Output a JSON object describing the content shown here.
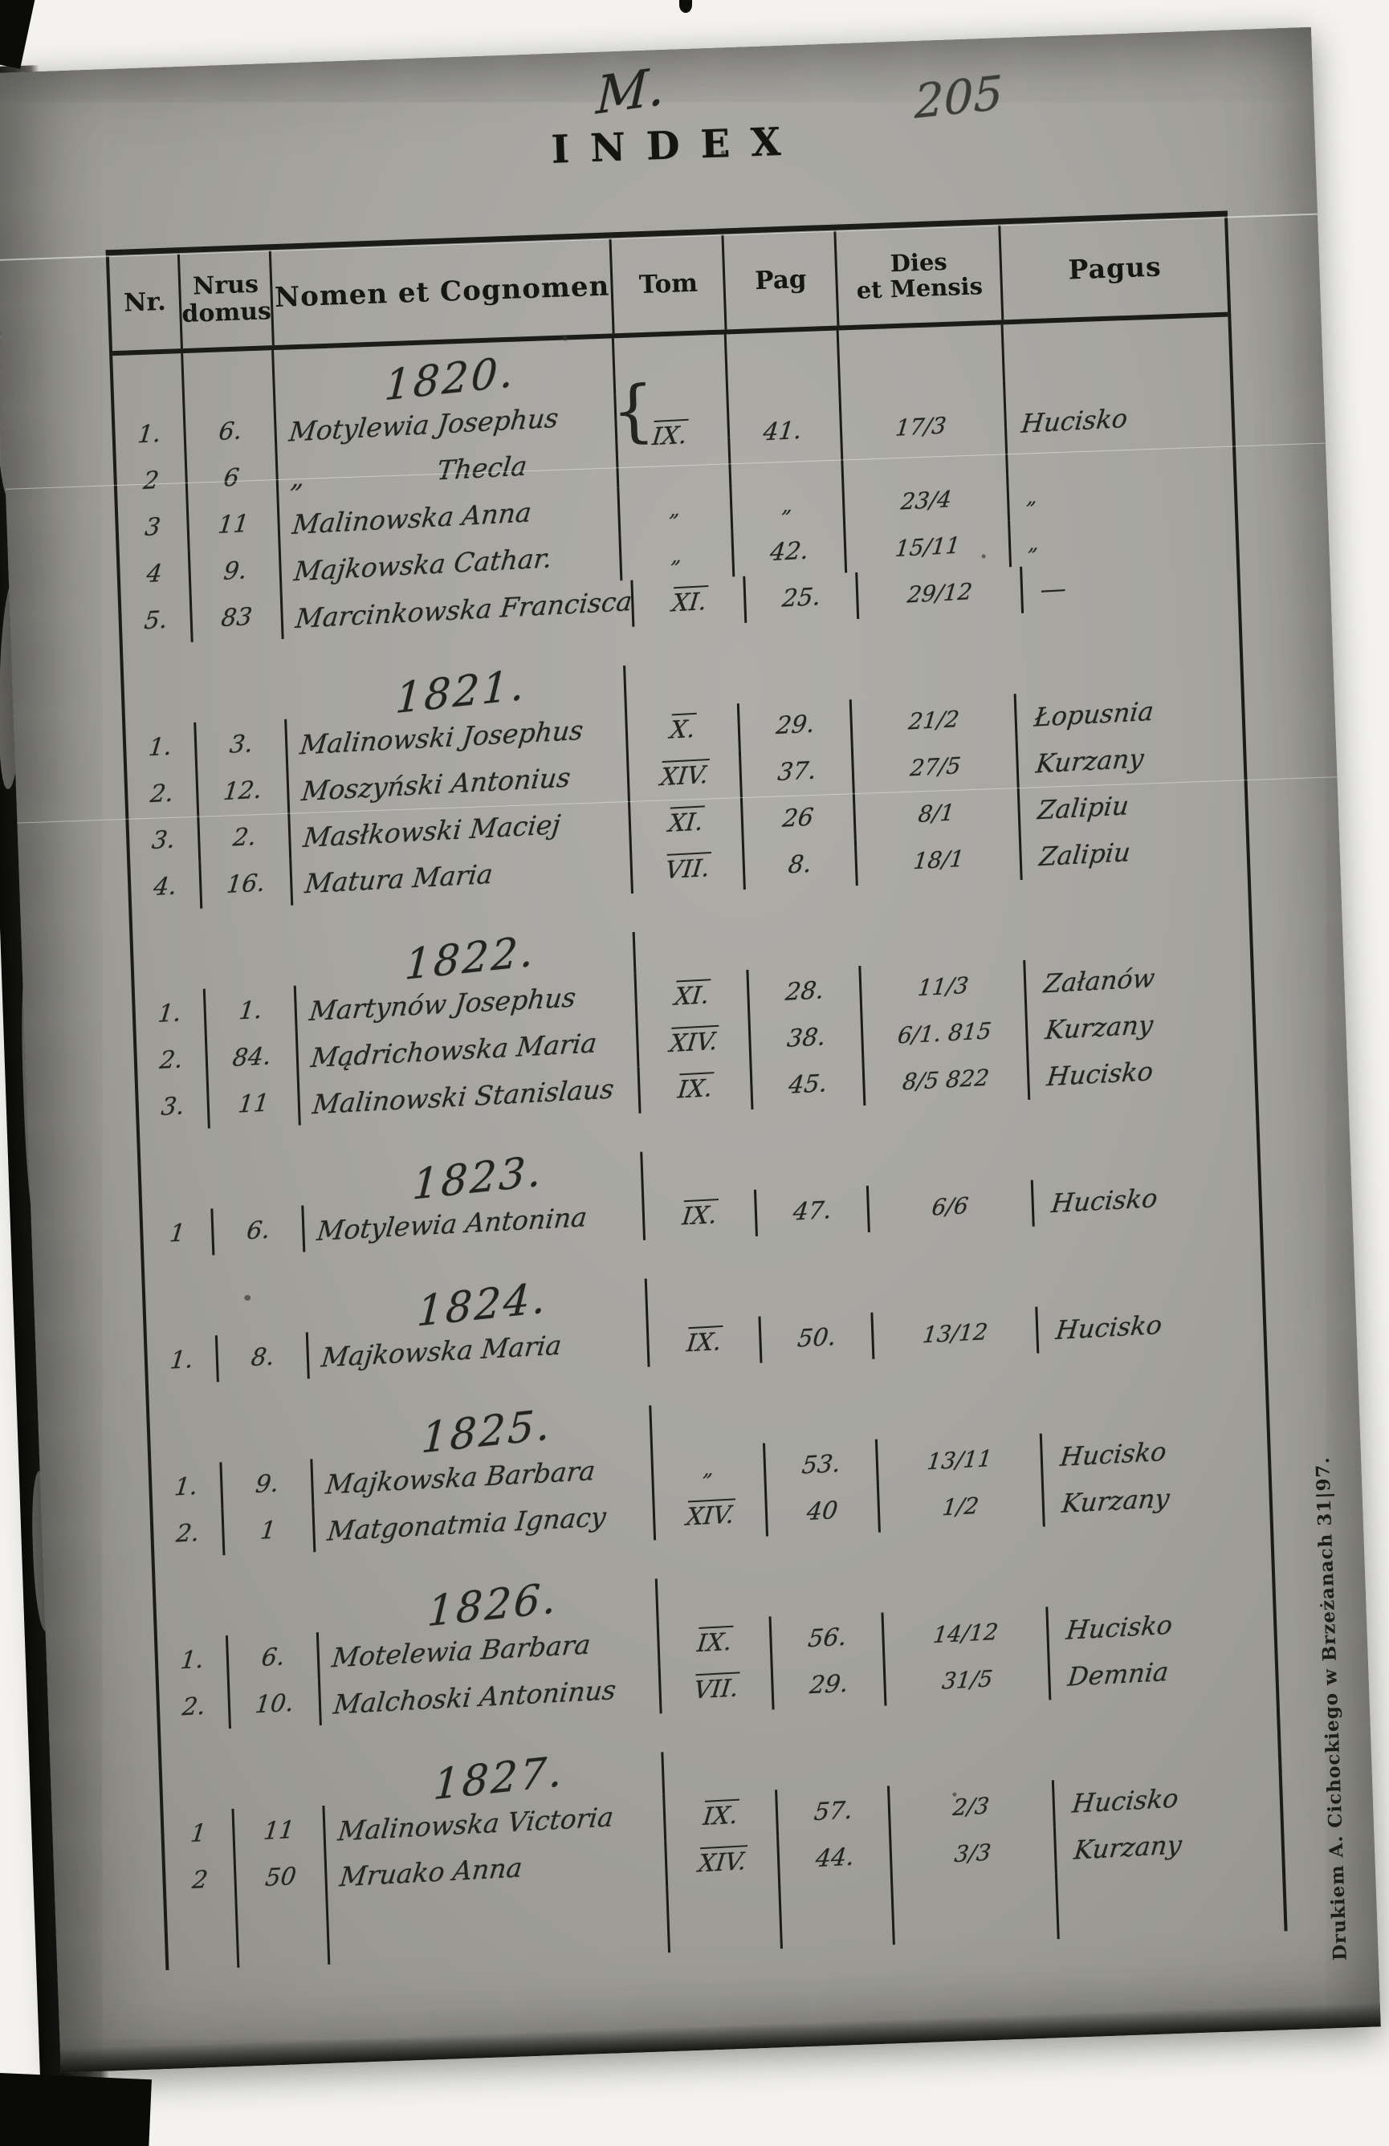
{
  "document": {
    "handwritten_letter": "M.",
    "title": "INDEX",
    "page_number": "205",
    "imprint": "Drukiem A. Cichockiego w Brzeżanach 31|97."
  },
  "table": {
    "headers": {
      "nr": "Nr.",
      "domus_line1": "Nrus",
      "domus_line2": "domus",
      "name": "Nomen et Cognomen",
      "tom": "Tom",
      "pag": "Pag",
      "dies_line1": "Dies",
      "dies_line2": "et Mensis",
      "pagus": "Pagus"
    },
    "sections": [
      {
        "year": "1820.",
        "rows": [
          {
            "nr": "1.",
            "domus": "6.",
            "name": "Motylewia Josephus",
            "brace": "{",
            "straddle": true,
            "tom": "IX.",
            "pag": "41.",
            "dies": "17/3",
            "pagus": "Hucisko"
          },
          {
            "nr": "2",
            "domus": "6",
            "name": "„     Thecla",
            "tom": "",
            "pag": "",
            "dies": "",
            "pagus": ""
          },
          {
            "nr": "3",
            "domus": "11",
            "name": "Malinowska Anna",
            "tom": "„",
            "pag": "„",
            "dies": "23/4",
            "pagus": "„"
          },
          {
            "nr": "4",
            "domus": "9.",
            "name": "Majkowska Cathar.",
            "tom": "„",
            "pag": "42.",
            "dies": "15/11",
            "pagus": "„"
          },
          {
            "nr": "5.",
            "domus": "83",
            "name": "Marcinkowska Francisca",
            "tom": "XI.",
            "pag": "25.",
            "dies": "29/12",
            "pagus": "—"
          }
        ]
      },
      {
        "year": "1821.",
        "rows": [
          {
            "nr": "1.",
            "domus": "3.",
            "name": "Malinowski Josephus",
            "tom": "X.",
            "pag": "29.",
            "dies": "21/2",
            "pagus": "Łopusnia"
          },
          {
            "nr": "2.",
            "domus": "12.",
            "name": "Moszyński Antonius",
            "tom": "XIV.",
            "pag": "37.",
            "dies": "27/5",
            "pagus": "Kurzany"
          },
          {
            "nr": "3.",
            "domus": "2.",
            "name": "Masłkowski Maciej",
            "tom": "XI.",
            "pag": "26",
            "dies": "8/1",
            "pagus": "Zalipiu"
          },
          {
            "nr": "4.",
            "domus": "16.",
            "name": "Matura Maria",
            "tom": "VII.",
            "pag": "8.",
            "dies": "18/1",
            "pagus": "Zalipiu"
          }
        ]
      },
      {
        "year": "1822.",
        "rows": [
          {
            "nr": "1.",
            "domus": "1.",
            "name": "Martynów Josephus",
            "tom": "XI.",
            "pag": "28.",
            "dies": "11/3",
            "pagus": "Załanów"
          },
          {
            "nr": "2.",
            "domus": "84.",
            "name": "Mądrichowska Maria",
            "tom": "XIV.",
            "pag": "38.",
            "dies": "6/1. 815",
            "pagus": "Kurzany"
          },
          {
            "nr": "3.",
            "domus": "11",
            "name": "Malinowski Stanislaus",
            "tom": "IX.",
            "pag": "45.",
            "dies": "8/5 822",
            "pagus": "Hucisko"
          }
        ]
      },
      {
        "year": "1823.",
        "rows": [
          {
            "nr": "1",
            "domus": "6.",
            "name": "Motylewia Antonina",
            "tom": "IX.",
            "pag": "47.",
            "dies": "6/6",
            "pagus": "Hucisko"
          }
        ]
      },
      {
        "year": "1824.",
        "rows": [
          {
            "nr": "1.",
            "domus": "8.",
            "name": "Majkowska Maria",
            "tom": "IX.",
            "pag": "50.",
            "dies": "13/12",
            "pagus": "Hucisko"
          }
        ]
      },
      {
        "year": "1825.",
        "rows": [
          {
            "nr": "1.",
            "domus": "9.",
            "name": "Majkowska Barbara",
            "tom": "„",
            "pag": "53.",
            "dies": "13/11",
            "pagus": "Hucisko"
          },
          {
            "nr": "2.",
            "domus": "1",
            "name": "Matgonatmia Ignacy",
            "tom": "XIV.",
            "pag": "40",
            "dies": "1/2",
            "pagus": "Kurzany"
          }
        ]
      },
      {
        "year": "1826.",
        "rows": [
          {
            "nr": "1.",
            "domus": "6.",
            "name": "Motelewia Barbara",
            "tom": "IX.",
            "pag": "56.",
            "dies": "14/12",
            "pagus": "Hucisko"
          },
          {
            "nr": "2.",
            "domus": "10.",
            "name": "Malchoski Antoninus",
            "tom": "VII.",
            "pag": "29.",
            "dies": "31/5",
            "pagus": "Demnia"
          }
        ]
      },
      {
        "year": "1827.",
        "rows": [
          {
            "nr": "1",
            "domus": "11",
            "name": "Malinowska Victoria",
            "tom": "IX.",
            "pag": "57.",
            "dies": "2/3",
            "pagus": "Hucisko"
          },
          {
            "nr": "2",
            "domus": "50",
            "name": "Mruako Anna",
            "tom": "XIV.",
            "pag": "44.",
            "dies": "3/3",
            "pagus": "Kurzany"
          }
        ]
      }
    ]
  }
}
